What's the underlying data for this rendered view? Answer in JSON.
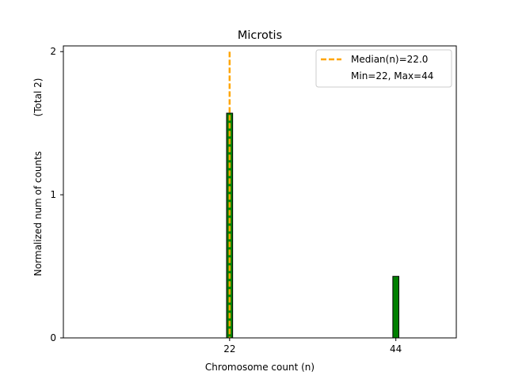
{
  "chart_data": {
    "type": "bar",
    "title": "Microtis",
    "xlabel": "Chromosome count (n)",
    "ylabel": "Normalized num of counts",
    "ylabel_extra": "(Total 2)",
    "xlim": [
      0,
      52
    ],
    "ylim": [
      0,
      2.04
    ],
    "x_ticks": [
      22,
      44
    ],
    "y_ticks": [
      0,
      1,
      2
    ],
    "grid": false,
    "legend_position": "top-right",
    "bars": [
      {
        "x": 22,
        "value": 1.57
      },
      {
        "x": 44,
        "value": 0.43
      }
    ],
    "bar_width": 0.8,
    "bar_color": "#008000",
    "bar_edge_color": "#000000",
    "median": {
      "x": 22,
      "color": "#ffa500",
      "label": "Median(n)=22.0"
    },
    "range_text": "Min=22, Max=44"
  }
}
